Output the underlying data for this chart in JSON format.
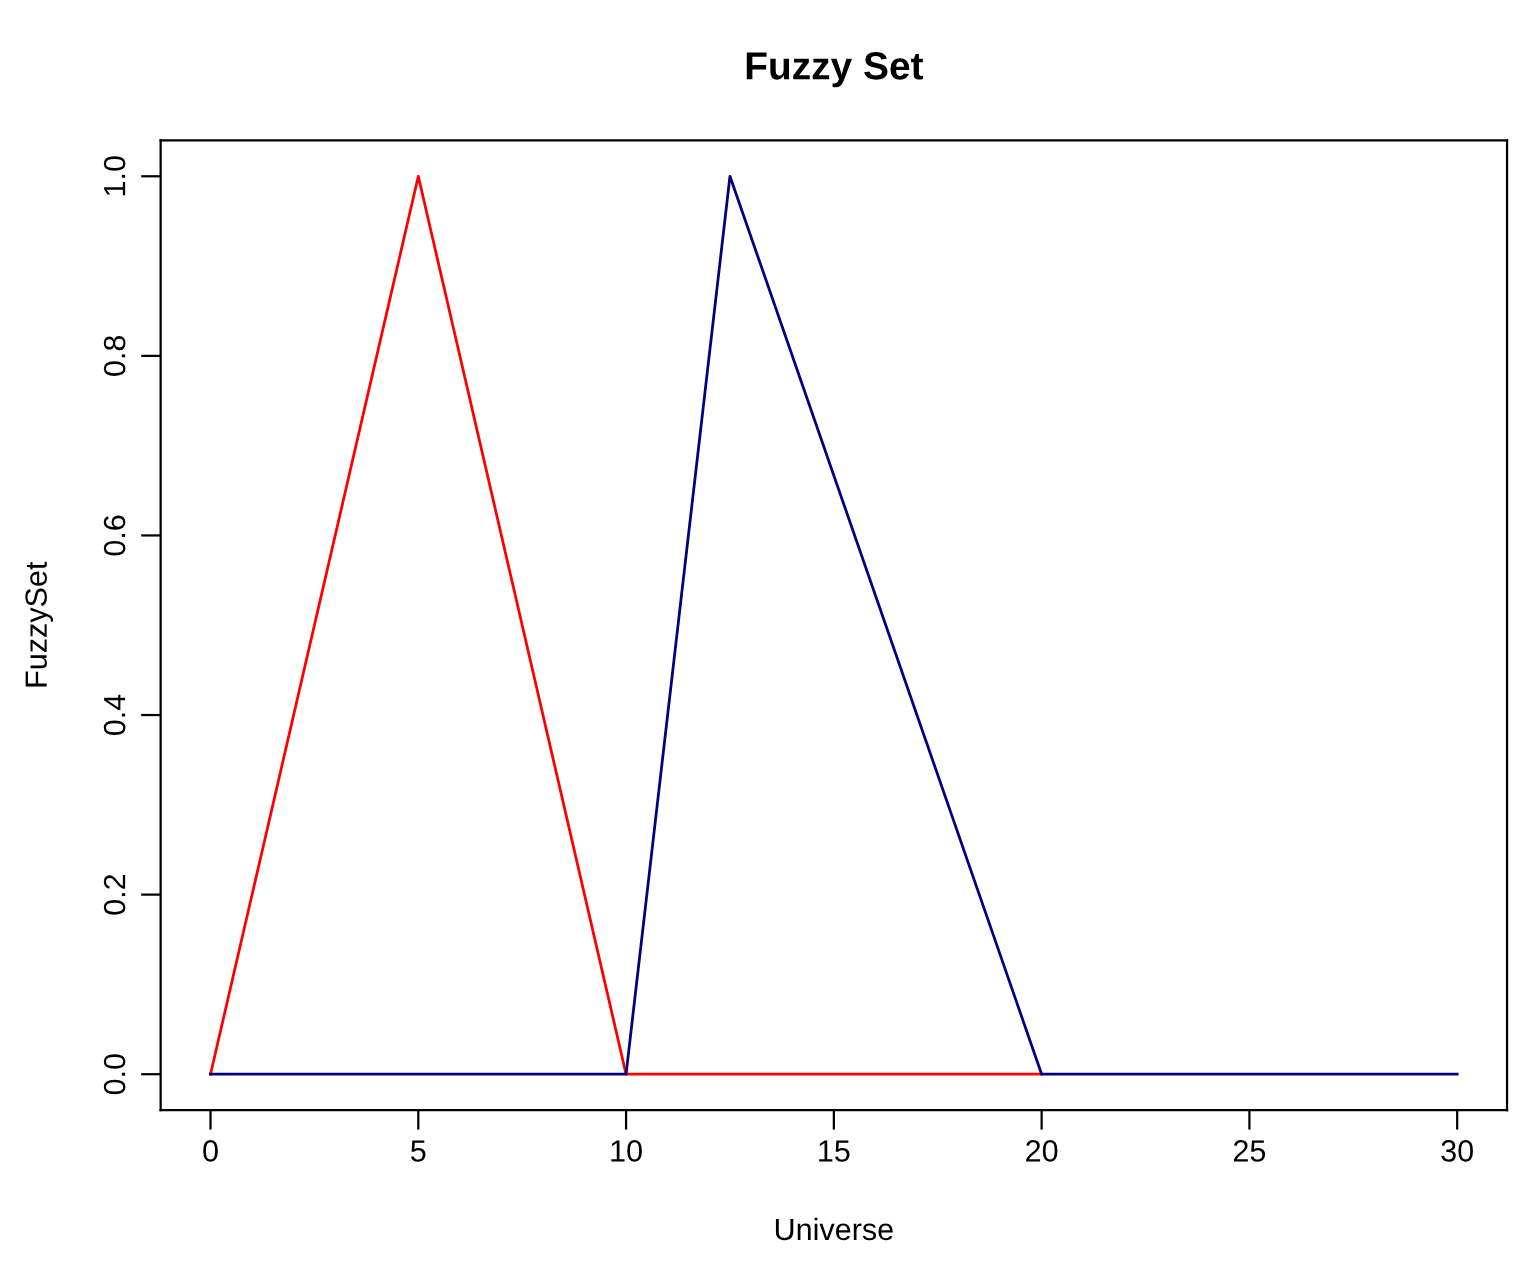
{
  "chart_data": {
    "type": "line",
    "title": "Fuzzy Set",
    "xlabel": "Universe",
    "ylabel": "FuzzySet",
    "series": [
      {
        "color": "#ff0000",
        "x": [
          0,
          5,
          10,
          20
        ],
        "values": [
          0,
          1,
          0,
          0
        ]
      },
      {
        "color": "#000080",
        "x": [
          0,
          10,
          12.5,
          20,
          30
        ],
        "values": [
          0,
          0,
          1,
          0,
          0
        ]
      }
    ],
    "xlim": [
      -1.2,
      31.2
    ],
    "ylim": [
      -0.04,
      1.04
    ],
    "xticks": [
      0,
      5,
      10,
      15,
      20,
      25,
      30
    ],
    "yticks": [
      {
        "value": 0,
        "label": "0.0"
      },
      0.2,
      0.4,
      0.6,
      0.8,
      {
        "value": 1,
        "label": "1.0"
      }
    ],
    "grid": false,
    "legend": false,
    "marker": "none",
    "line_style": "solid"
  }
}
